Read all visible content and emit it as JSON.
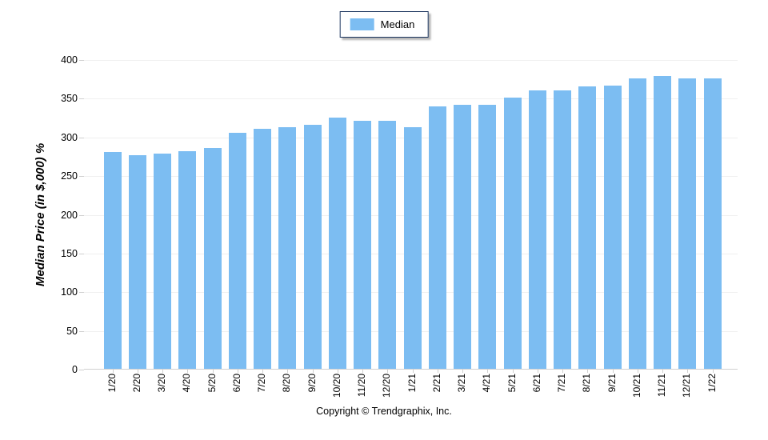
{
  "legend": {
    "label": "Median",
    "swatch_color": "#7cbdf2"
  },
  "footer": {
    "copyright": "Copyright © Trendgraphix, Inc."
  },
  "chart_data": {
    "type": "bar",
    "title": "",
    "ylabel": "Median Price (in $,000) %",
    "xlabel": "",
    "ylim": [
      0,
      400
    ],
    "ytick_step": 50,
    "grid": true,
    "legend_position": "top-center",
    "bar_color": "#7cbdf2",
    "gridline_color": "#f0f0f0",
    "axis_line_color": "#d0d0d0",
    "legend_border_color": "#1b355e",
    "series_name": "Median",
    "categories": [
      "1/20",
      "2/20",
      "3/20",
      "4/20",
      "5/20",
      "6/20",
      "7/20",
      "8/20",
      "9/20",
      "10/20",
      "11/20",
      "12/20",
      "1/21",
      "2/21",
      "3/21",
      "4/21",
      "5/21",
      "6/21",
      "7/21",
      "8/21",
      "9/21",
      "10/21",
      "11/21",
      "12/21",
      "1/22"
    ],
    "values": [
      280,
      276,
      278,
      281,
      285,
      305,
      310,
      312,
      315,
      325,
      320,
      320,
      312,
      339,
      341,
      341,
      350,
      360,
      360,
      365,
      366,
      375,
      378,
      375,
      375
    ]
  }
}
